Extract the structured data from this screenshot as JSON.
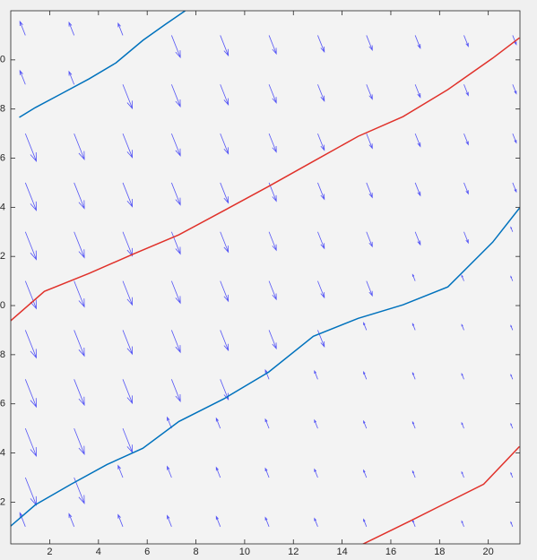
{
  "chart_data": {
    "type": "quiver",
    "xlim": [
      0.4,
      21.3
    ],
    "ylim": [
      0.3,
      22
    ],
    "xticks": [
      2,
      4,
      6,
      8,
      10,
      12,
      14,
      16,
      18,
      20
    ],
    "yticks": [
      2,
      4,
      6,
      8,
      10,
      12,
      14,
      16,
      18,
      20
    ],
    "arrow_color": "#5555f5",
    "x": [
      1,
      3,
      5,
      7,
      9,
      11,
      13,
      15,
      17,
      19,
      21
    ],
    "y": [
      1,
      3,
      5,
      7,
      9,
      11,
      13,
      15,
      17,
      19,
      21
    ],
    "u": [
      [
        -0.3,
        -0.28,
        -0.26,
        -0.24,
        -0.22,
        -0.2,
        -0.18,
        -0.16,
        -0.14,
        -0.12,
        -0.1
      ],
      [
        0.6,
        0.56,
        -0.26,
        -0.24,
        -0.22,
        -0.2,
        -0.18,
        -0.16,
        -0.14,
        -0.12,
        -0.1
      ],
      [
        0.6,
        0.56,
        0.52,
        -0.24,
        -0.22,
        -0.2,
        -0.18,
        -0.16,
        -0.14,
        -0.12,
        -0.1
      ],
      [
        0.6,
        0.56,
        0.52,
        0.48,
        0.44,
        -0.2,
        -0.18,
        -0.16,
        -0.14,
        -0.12,
        -0.1
      ],
      [
        0.6,
        0.56,
        0.52,
        0.48,
        0.44,
        0.4,
        0.36,
        -0.16,
        -0.14,
        -0.12,
        -0.1
      ],
      [
        0.6,
        0.56,
        0.52,
        0.48,
        0.44,
        0.4,
        0.36,
        0.32,
        -0.14,
        -0.12,
        -0.1
      ],
      [
        0.6,
        0.56,
        0.52,
        0.48,
        0.44,
        0.4,
        0.36,
        0.32,
        0.28,
        0.24,
        -0.1
      ],
      [
        0.6,
        0.56,
        0.52,
        0.48,
        0.44,
        0.4,
        0.36,
        0.32,
        0.28,
        0.24,
        0.2
      ],
      [
        0.6,
        0.56,
        0.52,
        0.48,
        0.44,
        0.4,
        0.36,
        0.32,
        0.28,
        0.24,
        0.2
      ],
      [
        -0.3,
        -0.28,
        0.52,
        0.48,
        0.44,
        0.4,
        0.36,
        0.32,
        0.28,
        0.24,
        0.2
      ],
      [
        -0.3,
        -0.28,
        -0.26,
        0.48,
        0.44,
        0.4,
        0.36,
        0.32,
        0.28,
        0.24,
        0.2
      ]
    ],
    "v": [
      [
        0.75,
        0.7,
        0.65,
        0.6,
        0.55,
        0.5,
        0.45,
        0.4,
        0.35,
        0.3,
        0.25
      ],
      [
        -1.5,
        -1.4,
        0.65,
        0.6,
        0.55,
        0.5,
        0.45,
        0.4,
        0.35,
        0.3,
        0.25
      ],
      [
        -1.5,
        -1.4,
        -1.3,
        0.6,
        0.55,
        0.5,
        0.45,
        0.4,
        0.35,
        0.3,
        0.25
      ],
      [
        -1.5,
        -1.4,
        -1.3,
        -1.2,
        -1.1,
        0.5,
        0.45,
        0.4,
        0.35,
        0.3,
        0.25
      ],
      [
        -1.5,
        -1.4,
        -1.3,
        -1.2,
        -1.1,
        -1.0,
        -0.9,
        0.4,
        0.35,
        0.3,
        0.25
      ],
      [
        -1.5,
        -1.4,
        -1.3,
        -1.2,
        -1.1,
        -1.0,
        -0.9,
        -0.8,
        0.35,
        0.3,
        0.25
      ],
      [
        -1.5,
        -1.4,
        -1.3,
        -1.2,
        -1.1,
        -1.0,
        -0.9,
        -0.8,
        -0.7,
        -0.6,
        0.25
      ],
      [
        -1.5,
        -1.4,
        -1.3,
        -1.2,
        -1.1,
        -1.0,
        -0.9,
        -0.8,
        -0.7,
        -0.6,
        -0.5
      ],
      [
        -1.5,
        -1.4,
        -1.3,
        -1.2,
        -1.1,
        -1.0,
        -0.9,
        -0.8,
        -0.7,
        -0.6,
        -0.5
      ],
      [
        0.75,
        0.7,
        -1.3,
        -1.2,
        -1.1,
        -1.0,
        -0.9,
        -0.8,
        -0.7,
        -0.6,
        -0.5
      ],
      [
        0.75,
        0.7,
        0.65,
        -1.2,
        -1.1,
        -1.0,
        -0.9,
        -0.8,
        -0.7,
        -0.6,
        -0.5
      ]
    ],
    "streamlines": [
      {
        "color": "#0072bd",
        "x": [
          0.75,
          1.41,
          2.51,
          3.62,
          4.72,
          5.83,
          6.75,
          7.56
        ],
        "y": [
          17.66,
          18.06,
          18.64,
          19.23,
          19.88,
          20.8,
          21.45,
          22
        ]
      },
      {
        "color": "#e0312a",
        "x": [
          0.38,
          1.78,
          3.62,
          5.46,
          7.3,
          9.14,
          10.98,
          12.82,
          14.66,
          16.5,
          18.34,
          20.18,
          21.28
        ],
        "y": [
          9.37,
          10.58,
          11.31,
          12.11,
          12.88,
          13.86,
          14.85,
          15.87,
          16.89,
          17.69,
          18.79,
          20.07,
          20.9
        ]
      },
      {
        "color": "#0072bd",
        "x": [
          0.38,
          1.41,
          2.88,
          4.35,
          5.82,
          7.3,
          9.14,
          10.98,
          12.82,
          14.66,
          16.5,
          18.34,
          20.18,
          21.28
        ],
        "y": [
          1.01,
          1.89,
          2.73,
          3.53,
          4.19,
          5.28,
          6.2,
          7.29,
          8.75,
          9.48,
          10.03,
          10.76,
          12.58,
          13.97
        ]
      },
      {
        "color": "#e0312a",
        "x": [
          14.77,
          16.13,
          16.87,
          18.34,
          19.81,
          21.28
        ],
        "y": [
          0.25,
          0.91,
          1.27,
          2.0,
          2.73,
          4.26
        ]
      }
    ]
  }
}
